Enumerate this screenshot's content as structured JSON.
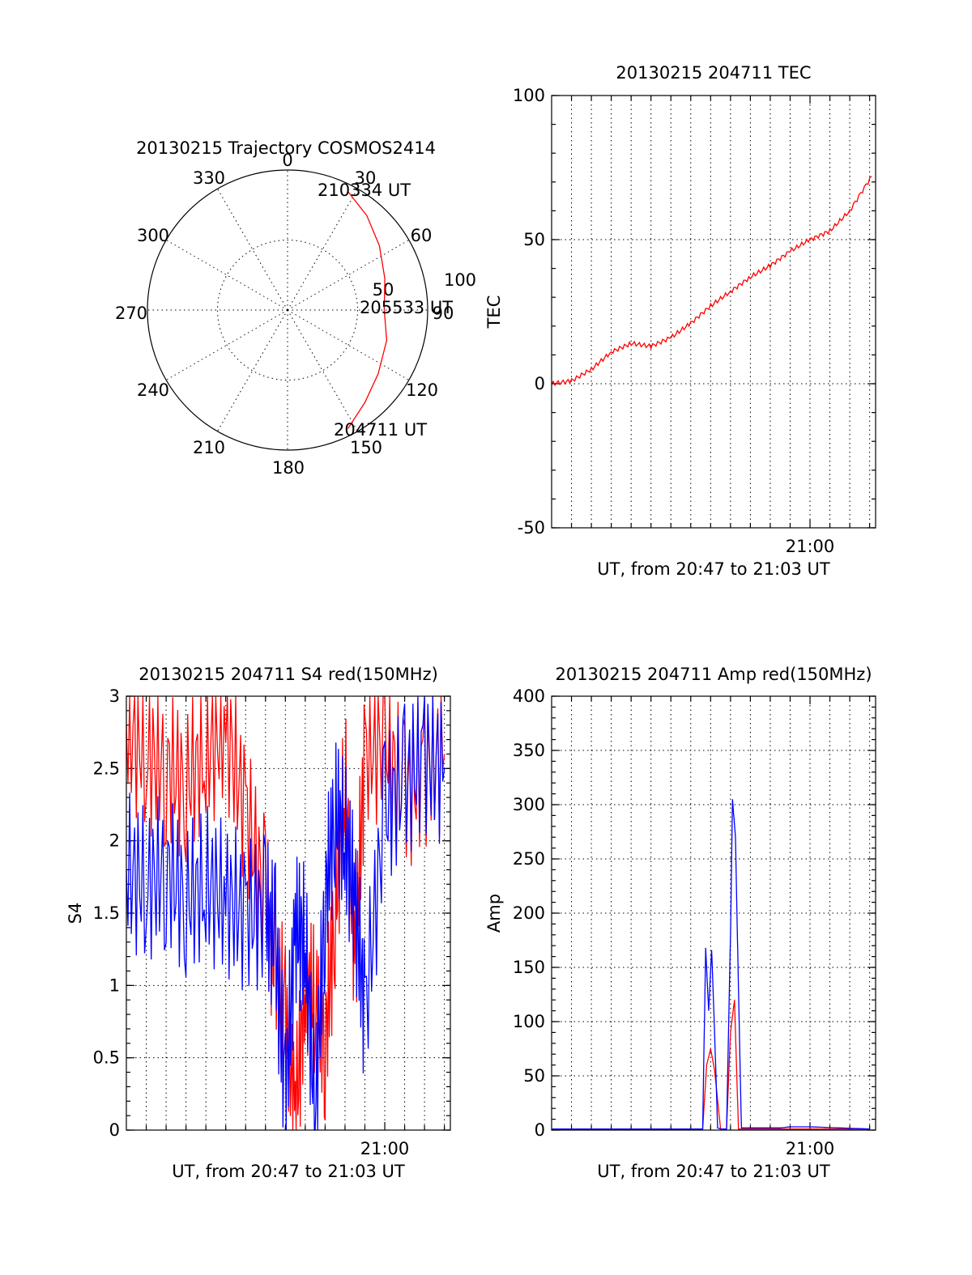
{
  "colors": {
    "red": "#ff0000",
    "blue": "#0000ff",
    "axis": "#000000"
  },
  "chart_data": [
    {
      "type": "polar",
      "title": "20130215 Trajectory COSMOS2414",
      "azimuth_labels": [
        "0",
        "30",
        "60",
        "90",
        "120",
        "150",
        "180",
        "210",
        "240",
        "270",
        "300",
        "330"
      ],
      "radius_labels": [
        "50",
        "100"
      ],
      "series": [
        {
          "color": "red",
          "points": [
            {
              "azimuth": 153,
              "zenith": 95
            },
            {
              "azimuth": 140,
              "zenith": 86
            },
            {
              "azimuth": 125,
              "zenith": 79
            },
            {
              "azimuth": 107,
              "zenith": 74
            },
            {
              "azimuth": 90,
              "zenith": 69
            },
            {
              "azimuth": 72,
              "zenith": 73
            },
            {
              "azimuth": 55,
              "zenith": 80
            },
            {
              "azimuth": 40,
              "zenith": 88
            },
            {
              "azimuth": 27,
              "zenith": 95
            }
          ]
        }
      ],
      "annotations": [
        {
          "text": "210334 UT",
          "azimuth": 27,
          "zenith": 95
        },
        {
          "text": "205533 UT",
          "azimuth": 90,
          "zenith": 69
        },
        {
          "text": "204711 UT",
          "azimuth": 153,
          "zenith": 95
        }
      ]
    },
    {
      "type": "line",
      "title": "20130215 204711 TEC",
      "xlabel": "UT, from 20:47 to 21:03 UT",
      "ylabel": "TEC",
      "xlim": [
        "20:47",
        "21:03"
      ],
      "ylim": [
        -50,
        100
      ],
      "yticks": [
        "-50",
        "0",
        "50",
        "100"
      ],
      "xtick_labels": [
        "21:00"
      ],
      "grid": true,
      "series": [
        {
          "color": "red",
          "x_minutes_after_20_00": [
            47,
            48,
            49,
            50,
            51,
            52,
            53,
            54,
            55,
            56,
            57,
            58,
            59,
            60,
            61,
            62,
            63.1
          ],
          "values": [
            0,
            1,
            5,
            11,
            14,
            13,
            16,
            21,
            27,
            32,
            37,
            41,
            46,
            50,
            53,
            60,
            72
          ]
        }
      ]
    },
    {
      "type": "line",
      "title": "20130215 204711 S4 red(150MHz)",
      "xlabel": "UT, from 20:47 to 21:03 UT",
      "ylabel": "S4",
      "xlim": [
        "20:47",
        "21:03"
      ],
      "ylim": [
        0,
        3
      ],
      "yticks": [
        "0",
        "0.5",
        "1",
        "1.5",
        "2",
        "2.5",
        "3"
      ],
      "xtick_labels": [
        "21:00"
      ],
      "grid": true,
      "series": [
        {
          "color": "red",
          "x_minutes_after_20_00": [
            47,
            48,
            49,
            50,
            51,
            52,
            53,
            54,
            54.5,
            55,
            55.5,
            56,
            56.5,
            57,
            57.5,
            58,
            58.5,
            59,
            60,
            61,
            62,
            63
          ],
          "values": [
            2.8,
            2.6,
            2.5,
            2.4,
            2.6,
            2.8,
            2.2,
            1.6,
            1.1,
            0.8,
            0.1,
            1.0,
            0.9,
            0.6,
            1.5,
            2.4,
            1.2,
            2.6,
            2.7,
            2.3,
            2.5,
            2.6
          ]
        },
        {
          "color": "blue",
          "x_minutes_after_20_00": [
            47,
            48,
            49,
            50,
            51,
            52,
            53,
            54,
            54.5,
            55,
            55.5,
            56,
            56.5,
            57,
            57.5,
            58,
            58.5,
            59,
            60,
            61,
            62,
            63
          ],
          "values": [
            1.8,
            1.7,
            1.8,
            1.6,
            1.7,
            1.6,
            1.5,
            1.5,
            1.3,
            0.2,
            1.4,
            1.3,
            0.1,
            1.6,
            2.2,
            2.0,
            1.6,
            0.8,
            2.2,
            2.4,
            2.6,
            2.5
          ]
        }
      ]
    },
    {
      "type": "line",
      "title": "20130215 204711 Amp red(150MHz)",
      "xlabel": "UT, from 20:47 to 21:03 UT",
      "ylabel": "Amp",
      "xlim": [
        "20:47",
        "21:03"
      ],
      "ylim": [
        0,
        400
      ],
      "yticks": [
        "0",
        "50",
        "100",
        "150",
        "200",
        "250",
        "300",
        "350",
        "400"
      ],
      "xtick_labels": [
        "21:00"
      ],
      "grid": true,
      "series": [
        {
          "color": "red",
          "x_minutes_after_20_00": [
            47,
            54.6,
            54.8,
            55.0,
            55.2,
            55.5,
            55.8,
            56.0,
            56.2,
            56.4,
            59.0,
            63.0
          ],
          "values": [
            1,
            1,
            60,
            75,
            55,
            1,
            1,
            90,
            120,
            1,
            1,
            1
          ]
        },
        {
          "color": "blue",
          "x_minutes_after_20_00": [
            47,
            54.6,
            54.75,
            54.9,
            55.05,
            55.2,
            55.35,
            55.5,
            55.8,
            56.0,
            56.1,
            56.25,
            56.4,
            56.55,
            58.5,
            59.0,
            60.0,
            63.0
          ],
          "values": [
            1,
            1,
            168,
            110,
            166,
            90,
            2,
            1,
            1,
            180,
            305,
            270,
            130,
            2,
            2,
            3,
            3,
            1
          ]
        }
      ]
    }
  ]
}
